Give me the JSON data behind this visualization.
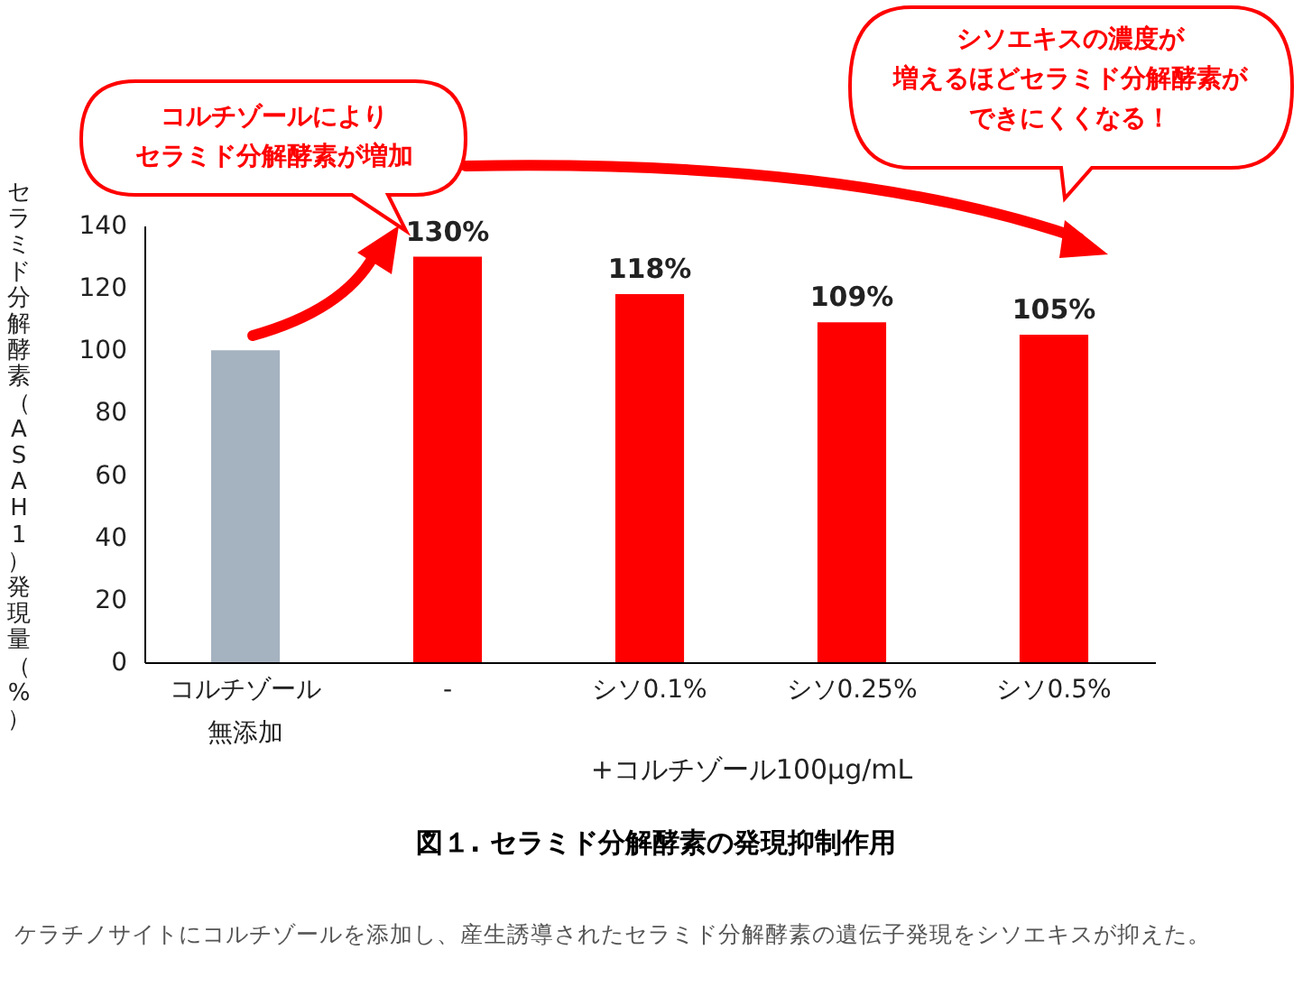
{
  "chart_data": {
    "type": "bar",
    "title": "図１. セラミド分解酵素の発現抑制作用",
    "ylabel": "セラミド分解酵素（ASAH1）発現量（%）",
    "xlabel": "+コルチゾール100μg/mL",
    "categories": [
      "コルチゾール無添加",
      "-",
      "シソ0.1%",
      "シソ0.25%",
      "シソ0.5%"
    ],
    "values": [
      100,
      130,
      118,
      109,
      105
    ],
    "colors": [
      "#a5b2c0",
      "#ff0000",
      "#ff0000",
      "#ff0000",
      "#ff0000"
    ],
    "value_labels": [
      null,
      "130%",
      "118%",
      "109%",
      "105%"
    ],
    "ylim": [
      0,
      140
    ],
    "yticks": [
      0,
      20,
      40,
      60,
      80,
      100,
      120,
      140
    ],
    "annotations": [
      "コルチゾールにより",
      "セラミド分解酵素が増加",
      "シソエキスの濃度が",
      "増えるほどセラミド分解酵素が",
      "できにくくなる！",
      "ケラチノサイトにコルチゾールを添加し、産生誘導されたセラミド分解酵素の遺伝子発現をシソエキスが抑えた。"
    ]
  }
}
